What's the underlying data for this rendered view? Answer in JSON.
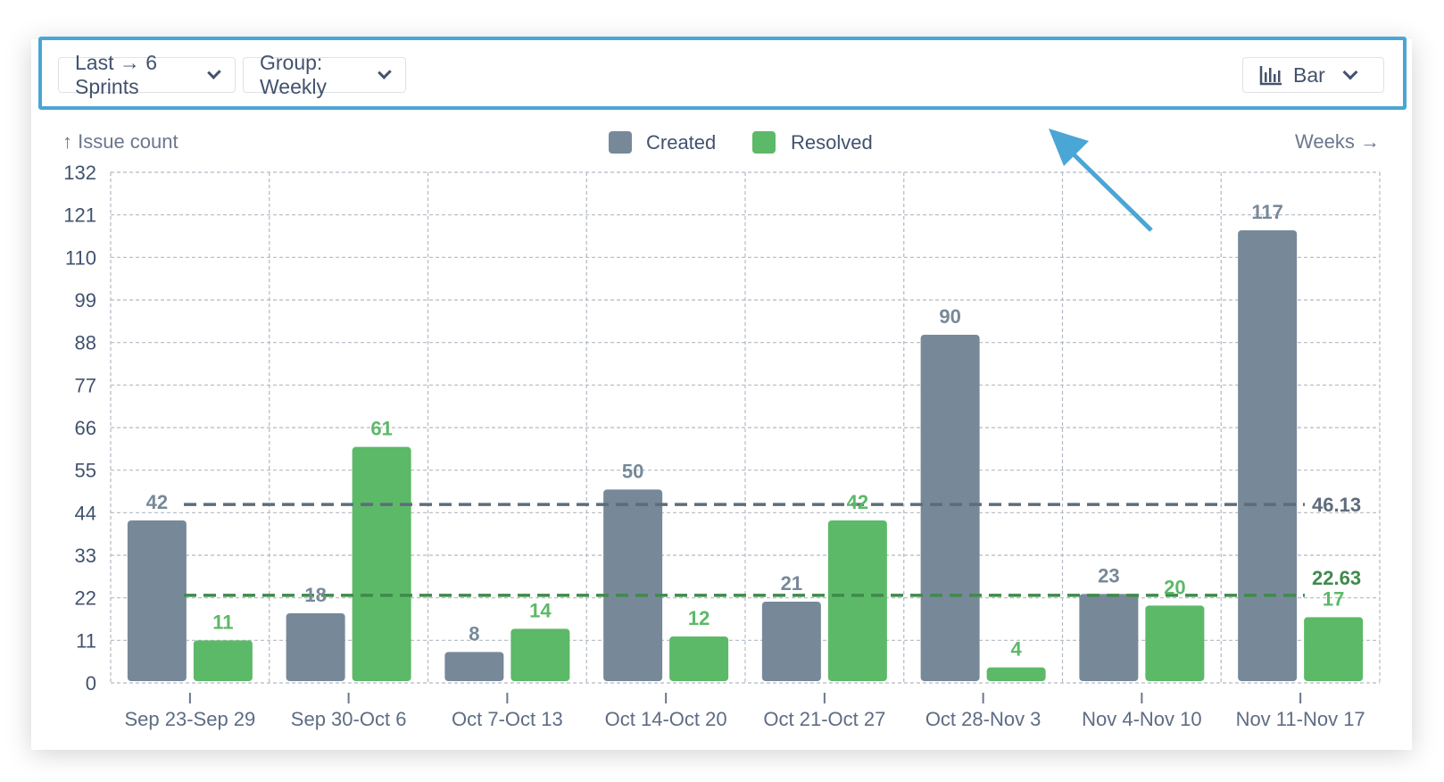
{
  "toolbar": {
    "range_label": "Last → 6 Sprints",
    "group_label": "Group: Weekly",
    "chart_type_label": "Bar",
    "chart_type_icon": "bar-chart-icon"
  },
  "colors": {
    "created": "#778999",
    "resolved": "#5cb968",
    "highlight": "#4aa6d4",
    "created_avg": "#5e6c7a",
    "resolved_avg": "#3f8a4b"
  },
  "chart_data": {
    "type": "bar",
    "ylabel": "↑ Issue count",
    "xlabel": "Weeks →",
    "ylim": [
      0,
      132
    ],
    "yticks": [
      0,
      11,
      22,
      33,
      44,
      55,
      66,
      77,
      88,
      99,
      110,
      121,
      132
    ],
    "grid": true,
    "legend": "top-center",
    "categories": [
      "Sep 23-Sep 29",
      "Sep 30-Oct 6",
      "Oct 7-Oct 13",
      "Oct 14-Oct 20",
      "Oct 21-Oct 27",
      "Oct 28-Nov 3",
      "Nov 4-Nov 10",
      "Nov 11-Nov 17"
    ],
    "series": [
      {
        "name": "Created",
        "values": [
          42,
          18,
          8,
          50,
          21,
          90,
          23,
          117
        ],
        "average": 46.13,
        "average_label": "46.13"
      },
      {
        "name": "Resolved",
        "values": [
          11,
          61,
          14,
          12,
          42,
          4,
          20,
          17
        ],
        "average": 22.63,
        "average_label": "22.63"
      }
    ]
  }
}
